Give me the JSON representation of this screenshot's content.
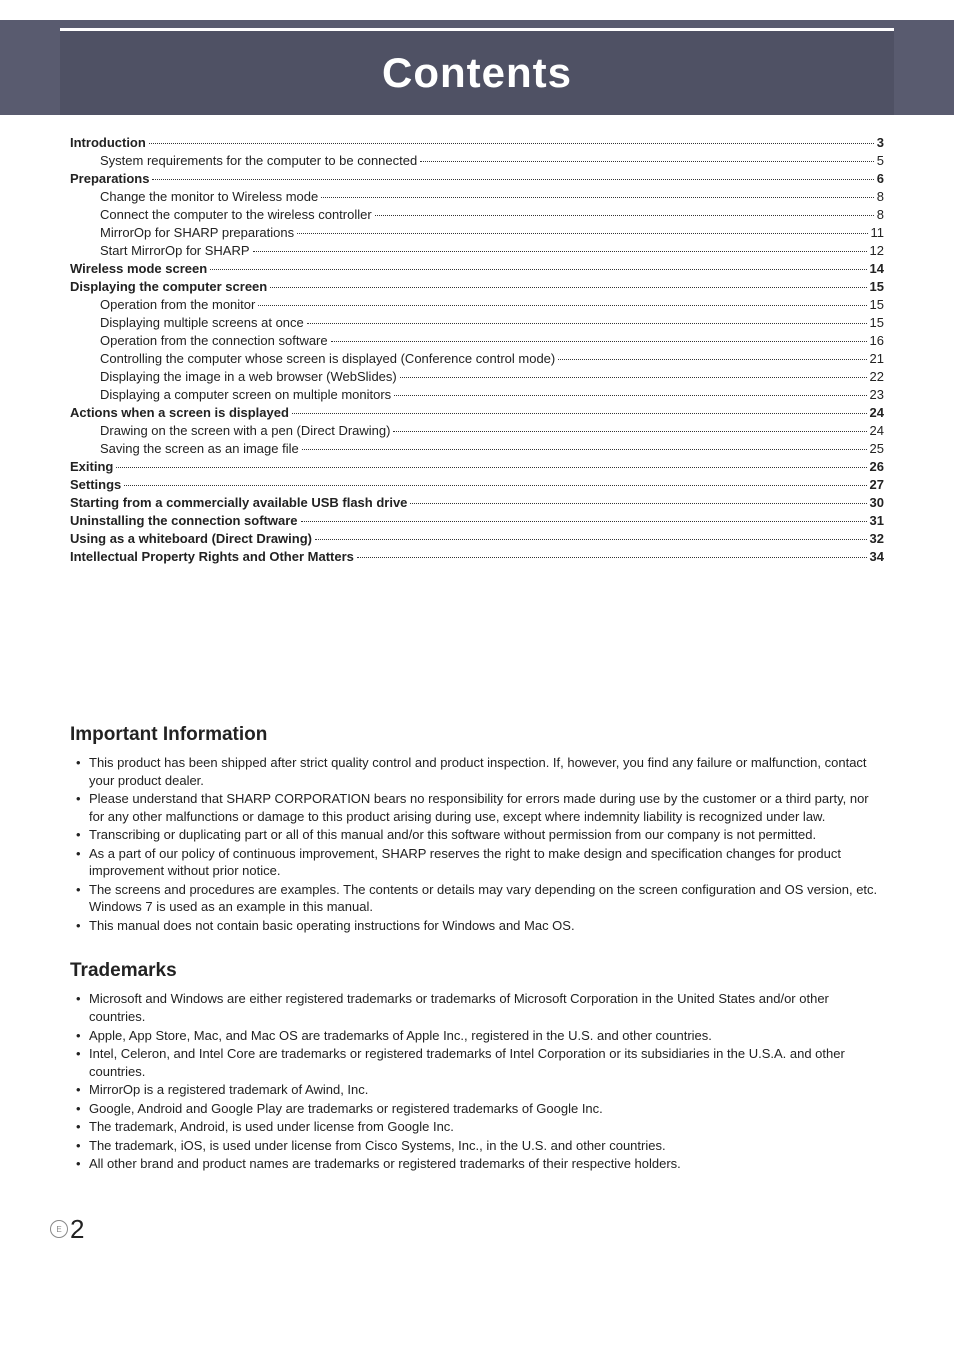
{
  "header": {
    "title": "Contents"
  },
  "toc": [
    {
      "label": "Introduction",
      "page": "3",
      "bold": true,
      "nested": false
    },
    {
      "label": "System requirements for the computer to be connected",
      "page": "5",
      "bold": false,
      "nested": true
    },
    {
      "label": "Preparations",
      "page": "6",
      "bold": true,
      "nested": false
    },
    {
      "label": "Change the monitor to Wireless mode",
      "page": "8",
      "bold": false,
      "nested": true
    },
    {
      "label": "Connect the computer to the wireless controller",
      "page": "8",
      "bold": false,
      "nested": true
    },
    {
      "label": "MirrorOp for SHARP preparations",
      "page": "11",
      "bold": false,
      "nested": true
    },
    {
      "label": "Start MirrorOp for SHARP",
      "page": "12",
      "bold": false,
      "nested": true
    },
    {
      "label": "Wireless mode screen",
      "page": "14",
      "bold": true,
      "nested": false
    },
    {
      "label": "Displaying the computer screen",
      "page": "15",
      "bold": true,
      "nested": false
    },
    {
      "label": "Operation from the monitor",
      "page": "15",
      "bold": false,
      "nested": true
    },
    {
      "label": "Displaying multiple screens at once",
      "page": "15",
      "bold": false,
      "nested": true
    },
    {
      "label": "Operation from the connection software",
      "page": "16",
      "bold": false,
      "nested": true
    },
    {
      "label": "Controlling the computer whose screen is displayed (Conference control mode)",
      "page": "21",
      "bold": false,
      "nested": true
    },
    {
      "label": "Displaying the image in a web browser (WebSlides)",
      "page": "22",
      "bold": false,
      "nested": true
    },
    {
      "label": "Displaying a computer screen on multiple monitors",
      "page": "23",
      "bold": false,
      "nested": true
    },
    {
      "label": "Actions when a screen is displayed",
      "page": "24",
      "bold": true,
      "nested": false
    },
    {
      "label": "Drawing on the screen with a pen (Direct Drawing)",
      "page": "24",
      "bold": false,
      "nested": true
    },
    {
      "label": "Saving the screen as an image file",
      "page": "25",
      "bold": false,
      "nested": true
    },
    {
      "label": "Exiting",
      "page": "26",
      "bold": true,
      "nested": false
    },
    {
      "label": "Settings",
      "page": "27",
      "bold": true,
      "nested": false
    },
    {
      "label": "Starting from a commercially available USB flash drive",
      "page": "30",
      "bold": true,
      "nested": false
    },
    {
      "label": "Uninstalling the connection software",
      "page": "31",
      "bold": true,
      "nested": false
    },
    {
      "label": "Using as a whiteboard (Direct Drawing)",
      "page": "32",
      "bold": true,
      "nested": false
    },
    {
      "label": "Intellectual Property Rights and Other Matters",
      "page": "34",
      "bold": true,
      "nested": false
    }
  ],
  "important_info": {
    "heading": "Important Information",
    "items": [
      "This product has been shipped after strict quality control and product inspection. If, however, you find any failure or malfunction, contact your product dealer.",
      "Please understand that SHARP CORPORATION bears no responsibility for errors made during use by the customer or a third party, nor for any other malfunctions or damage to this product arising during use, except where indemnity liability is recognized under law.",
      "Transcribing or duplicating part or all of this manual and/or this software without permission from our company is not permitted.",
      "As a part of our policy of continuous improvement, SHARP reserves the right to make design and specification changes for product improvement without prior notice.",
      "The screens and procedures are examples. The contents or details may vary depending on the screen configuration and OS version, etc. Windows 7 is used as an example in this manual.",
      "This manual does not contain basic operating instructions for Windows and Mac OS."
    ]
  },
  "trademarks": {
    "heading": "Trademarks",
    "items": [
      "Microsoft and Windows are either registered trademarks or trademarks of Microsoft Corporation in the United States and/or other countries.",
      "Apple, App Store, Mac, and Mac OS are trademarks of Apple Inc., registered in the U.S. and other countries.",
      "Intel, Celeron, and Intel Core are trademarks or registered trademarks of Intel Corporation or its subsidiaries in the U.S.A. and other countries.",
      "MirrorOp is a registered trademark of Awind, Inc.",
      "Google, Android and Google Play are trademarks or registered trademarks of Google Inc.",
      "The trademark, Android, is used under license from Google Inc.",
      "The trademark, iOS, is used under license from Cisco Systems, Inc., in the U.S. and other countries.",
      "All other brand and product names are trademarks or registered trademarks of their respective holders."
    ]
  },
  "footer": {
    "marker": "E",
    "pagenum": "2"
  }
}
